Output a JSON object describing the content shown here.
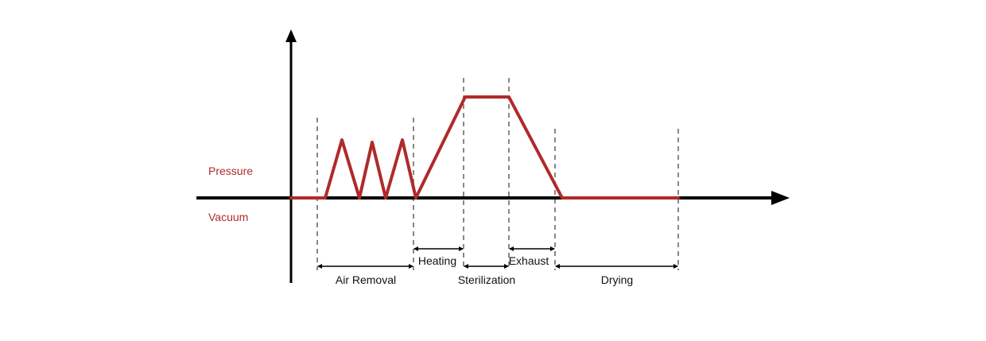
{
  "axis_labels": {
    "pressure": "Pressure",
    "vacuum": "Vacuum"
  },
  "phases": {
    "air_removal": "Air Removal",
    "heating": "Heating",
    "sterilization": "Sterilization",
    "exhaust": "Exhaust",
    "drying": "Drying"
  },
  "colors": {
    "curve": "#b02a2a",
    "label_red": "#b02a2a",
    "axis": "#000000",
    "guide": "#888888"
  }
}
